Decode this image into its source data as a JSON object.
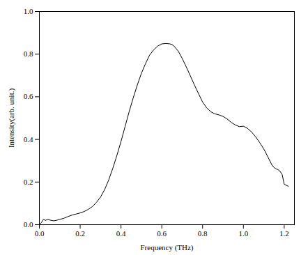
{
  "chart_data": {
    "type": "line",
    "xlabel": "Frequency (THz)",
    "ylabel": "Intensity(arb. unit.)",
    "x": [
      0.0,
      0.01,
      0.02,
      0.03,
      0.04,
      0.05,
      0.06,
      0.07,
      0.08,
      0.09,
      0.1,
      0.12,
      0.14,
      0.16,
      0.18,
      0.2,
      0.22,
      0.24,
      0.26,
      0.28,
      0.3,
      0.32,
      0.34,
      0.36,
      0.38,
      0.4,
      0.42,
      0.44,
      0.46,
      0.48,
      0.5,
      0.52,
      0.54,
      0.56,
      0.58,
      0.6,
      0.62,
      0.64,
      0.65,
      0.66,
      0.68,
      0.7,
      0.72,
      0.74,
      0.76,
      0.78,
      0.8,
      0.82,
      0.84,
      0.86,
      0.88,
      0.9,
      0.92,
      0.94,
      0.96,
      0.98,
      1.0,
      1.02,
      1.04,
      1.06,
      1.08,
      1.1,
      1.12,
      1.14,
      1.15,
      1.16,
      1.17,
      1.18,
      1.19,
      1.2,
      1.22
    ],
    "values": [
      0.0,
      0.01,
      0.025,
      0.02,
      0.025,
      0.022,
      0.02,
      0.018,
      0.02,
      0.022,
      0.025,
      0.03,
      0.038,
      0.045,
      0.05,
      0.055,
      0.062,
      0.072,
      0.085,
      0.105,
      0.13,
      0.165,
      0.21,
      0.265,
      0.325,
      0.39,
      0.46,
      0.53,
      0.595,
      0.655,
      0.71,
      0.755,
      0.795,
      0.82,
      0.838,
      0.848,
      0.85,
      0.848,
      0.845,
      0.838,
      0.815,
      0.78,
      0.74,
      0.698,
      0.655,
      0.615,
      0.575,
      0.548,
      0.53,
      0.52,
      0.515,
      0.508,
      0.496,
      0.48,
      0.468,
      0.46,
      0.462,
      0.452,
      0.435,
      0.412,
      0.385,
      0.355,
      0.318,
      0.28,
      0.268,
      0.262,
      0.258,
      0.25,
      0.235,
      0.19,
      0.18
    ],
    "color": "#000000",
    "xlim": [
      0,
      1.25
    ],
    "ylim": [
      0,
      1.0
    ],
    "xticks": [
      {
        "value": 0.0,
        "label": "0.0"
      },
      0.2,
      0.4,
      0.6,
      0.8,
      {
        "value": 1.0,
        "label": "1.0"
      },
      1.2
    ],
    "yticks": [
      {
        "value": 0.0,
        "label": "0.0"
      },
      0.2,
      0.4,
      0.6,
      0.8,
      {
        "value": 1.0,
        "label": "1.0"
      }
    ],
    "grid": false
  }
}
